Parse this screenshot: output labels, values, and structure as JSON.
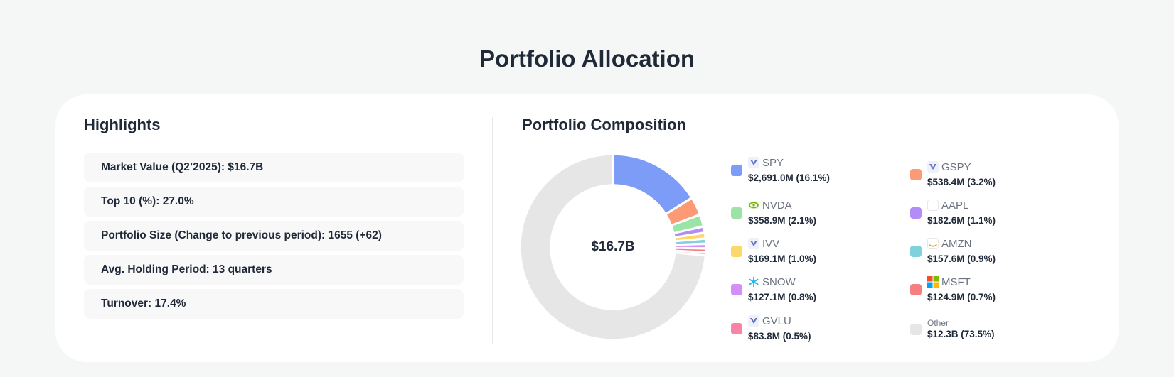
{
  "page": {
    "title": "Portfolio Allocation"
  },
  "highlights": {
    "title": "Highlights",
    "items": [
      {
        "label": "Market Value (Q2’2025):",
        "value": "$16.7B"
      },
      {
        "label": "Top 10 (%):",
        "value": "27.0%"
      },
      {
        "label": "Portfolio Size (Change to previous period):",
        "value": "1655 (+62)"
      },
      {
        "label": "Avg. Holding Period:",
        "value": "13 quarters"
      },
      {
        "label": "Turnover:",
        "value": "17.4%"
      }
    ]
  },
  "composition": {
    "title": "Portfolio Composition",
    "center_label": "$16.7B",
    "legend": [
      {
        "ticker": "SPY",
        "value": "$2,691.0M (16.1%)",
        "color": "#7c9cf8",
        "icon": "vanguard-icon"
      },
      {
        "ticker": "GSPY",
        "value": "$538.4M (3.2%)",
        "color": "#fb9a74",
        "icon": "vanguard-icon"
      },
      {
        "ticker": "NVDA",
        "value": "$358.9M (2.1%)",
        "color": "#9be3a6",
        "icon": "nvidia-icon"
      },
      {
        "ticker": "AAPL",
        "value": "$182.6M (1.1%)",
        "color": "#b38cf7",
        "icon": "apple-icon"
      },
      {
        "ticker": "IVV",
        "value": "$169.1M (1.0%)",
        "color": "#fcd76a",
        "icon": "vanguard-icon"
      },
      {
        "ticker": "AMZN",
        "value": "$157.6M (0.9%)",
        "color": "#7fd1dd",
        "icon": "amazon-icon"
      },
      {
        "ticker": "SNOW",
        "value": "$127.1M (0.8%)",
        "color": "#d58ef7",
        "icon": "snowflake-icon"
      },
      {
        "ticker": "MSFT",
        "value": "$124.9M (0.7%)",
        "color": "#f77e7e",
        "icon": "microsoft-icon"
      },
      {
        "ticker": "GVLU",
        "value": "$83.8M (0.5%)",
        "color": "#f984a8",
        "icon": "vanguard-icon"
      },
      {
        "ticker": "Other",
        "value": "$12.3B (73.5%)",
        "color": "#e5e6e5",
        "icon": ""
      }
    ]
  },
  "chart_data": {
    "type": "pie",
    "categories": [
      "SPY",
      "GSPY",
      "NVDA",
      "AAPL",
      "IVV",
      "AMZN",
      "SNOW",
      "MSFT",
      "GVLU",
      "Other"
    ],
    "values": [
      16.1,
      3.2,
      2.1,
      1.1,
      1.0,
      0.9,
      0.8,
      0.7,
      0.5,
      73.5
    ],
    "unit": "%",
    "colors": [
      "#7c9cf8",
      "#fb9a74",
      "#9be3a6",
      "#b38cf7",
      "#fcd76a",
      "#7fd1dd",
      "#d58ef7",
      "#f77e7e",
      "#f984a8",
      "#e5e6e5"
    ],
    "donut": true,
    "center_text": "$16.7B",
    "legend": "right"
  }
}
